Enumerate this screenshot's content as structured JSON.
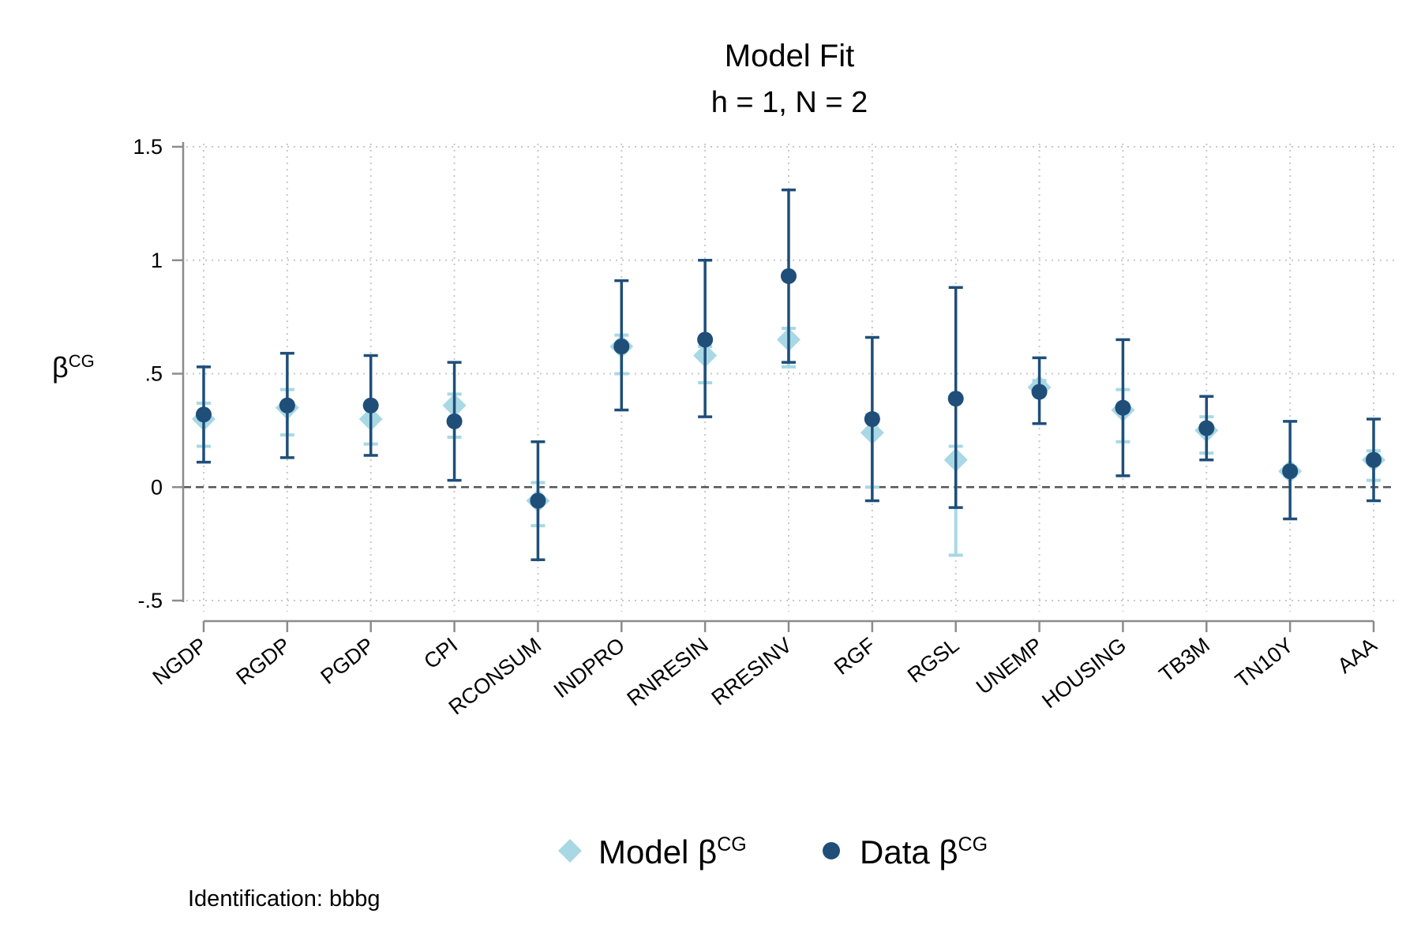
{
  "chart_data": {
    "type": "scatter",
    "title": "Model Fit",
    "subtitle": "h = 1, N = 2",
    "ylabel": "β",
    "ylabel_superscript": "CG",
    "xlabel": "",
    "ylim": [
      -0.5,
      1.5
    ],
    "yticks": [
      -0.5,
      0,
      0.5,
      1,
      1.5
    ],
    "ytick_labels": [
      "-.5",
      "0",
      ".5",
      "1",
      "1.5"
    ],
    "grid": "dotted",
    "reference_line": {
      "y": 0,
      "style": "dashed"
    },
    "legend_position": "bottom",
    "categories": [
      "NGDP",
      "RGDP",
      "PGDP",
      "CPI",
      "RCONSUM",
      "INDPRO",
      "RNRESIN",
      "RRESINV",
      "RGF",
      "RGSL",
      "UNEMP",
      "HOUSING",
      "TB3M",
      "TN10Y",
      "AAA"
    ],
    "series": [
      {
        "name": "Model β",
        "name_superscript": "CG",
        "marker": "diamond",
        "color": "#a8d8e4",
        "values": [
          0.3,
          0.35,
          0.3,
          0.36,
          -0.06,
          0.62,
          0.58,
          0.65,
          0.24,
          0.12,
          0.44,
          0.34,
          0.25,
          0.07,
          0.12
        ],
        "ci_low": [
          0.18,
          0.23,
          0.19,
          0.22,
          -0.17,
          0.5,
          0.46,
          0.53,
          0.0,
          -0.3,
          0.41,
          0.2,
          0.15,
          0.05,
          0.03
        ],
        "ci_high": [
          0.37,
          0.43,
          0.37,
          0.41,
          0.02,
          0.67,
          0.62,
          0.7,
          0.32,
          0.18,
          0.47,
          0.43,
          0.31,
          0.09,
          0.16
        ]
      },
      {
        "name": "Data β",
        "name_superscript": "CG",
        "marker": "circle",
        "color": "#1f4e79",
        "values": [
          0.32,
          0.36,
          0.36,
          0.29,
          -0.06,
          0.62,
          0.65,
          0.93,
          0.3,
          0.39,
          0.42,
          0.35,
          0.26,
          0.07,
          0.12
        ],
        "ci_low": [
          0.11,
          0.13,
          0.14,
          0.03,
          -0.32,
          0.34,
          0.31,
          0.55,
          -0.06,
          -0.09,
          0.28,
          0.05,
          0.12,
          -0.14,
          -0.06
        ],
        "ci_high": [
          0.53,
          0.59,
          0.58,
          0.55,
          0.2,
          0.91,
          1.0,
          1.31,
          0.66,
          0.88,
          0.57,
          0.65,
          0.4,
          0.29,
          0.3
        ]
      }
    ],
    "footnote": "Identification: bbbg"
  },
  "colors": {
    "axis": "#8c8c8c",
    "grid": "#c8c8c8",
    "zero_line": "#555555",
    "model": "#a8d8e4",
    "data": "#1f4e79"
  }
}
